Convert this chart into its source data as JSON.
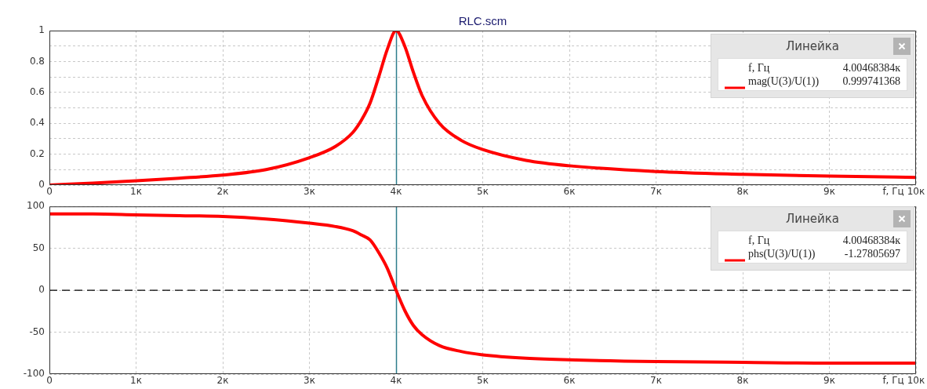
{
  "chart_data": [
    {
      "type": "line",
      "title": "RLC.scm",
      "xlabel": "f, Гц",
      "legend": "top right",
      "legend_title": "Линейка",
      "marker": "none",
      "line_style": "solid",
      "grid": true,
      "xlim": [
        0,
        10
      ],
      "xticks": [
        0,
        {
          "value": 1,
          "label": "1к"
        },
        {
          "value": 2,
          "label": "2к"
        },
        {
          "value": 3,
          "label": "3к"
        },
        {
          "value": 4,
          "label": "4к"
        },
        {
          "value": 5,
          "label": "5к"
        },
        {
          "value": 6,
          "label": "6к"
        },
        {
          "value": 7,
          "label": "7к"
        },
        {
          "value": 8,
          "label": "8к"
        },
        {
          "value": 9,
          "label": "9к"
        },
        {
          "value": 10,
          "label": "10к"
        }
      ],
      "ylim": [
        0,
        1
      ],
      "yticks": [
        0,
        {
          "value": 0.1,
          "label": null
        },
        0.2,
        {
          "value": 0.3,
          "label": null
        },
        0.4,
        {
          "value": 0.5,
          "label": null
        },
        0.6,
        {
          "value": 0.7,
          "label": null
        },
        0.8,
        {
          "value": 0.9,
          "label": null
        },
        1
      ],
      "x": [
        0,
        0.5,
        1,
        1.5,
        2,
        2.5,
        3,
        3.3,
        3.5,
        3.6,
        3.7,
        3.8,
        3.9,
        4,
        4.1,
        4.2,
        4.3,
        4.5,
        4.75,
        5,
        5.5,
        6,
        7,
        8,
        9,
        10
      ],
      "series": [
        {
          "name": "mag(U(3)/U(1))",
          "color": "#ff0000",
          "values": [
            0,
            0.013,
            0.028,
            0.045,
            0.065,
            0.1,
            0.177,
            0.25,
            0.34,
            0.42,
            0.53,
            0.7,
            0.88,
            1,
            0.9,
            0.73,
            0.58,
            0.4,
            0.29,
            0.23,
            0.16,
            0.125,
            0.088,
            0.07,
            0.058,
            0.05
          ]
        }
      ],
      "ref_lines": [
        {
          "axis": "x",
          "value": 4.00468384,
          "color": "#2e7d8c"
        }
      ],
      "annotations": [
        "4.00468384к",
        "0.999741368"
      ]
    },
    {
      "type": "line",
      "xlabel": "f, Гц",
      "legend": "top right",
      "legend_title": "Линейка",
      "marker": "none",
      "line_style": "solid",
      "grid": true,
      "xlim": [
        0,
        10
      ],
      "xticks": [
        0,
        {
          "value": 1,
          "label": "1к"
        },
        {
          "value": 2,
          "label": "2к"
        },
        {
          "value": 3,
          "label": "3к"
        },
        {
          "value": 4,
          "label": "4к"
        },
        {
          "value": 5,
          "label": "5к"
        },
        {
          "value": 6,
          "label": "6к"
        },
        {
          "value": 7,
          "label": "7к"
        },
        {
          "value": 8,
          "label": "8к"
        },
        {
          "value": 9,
          "label": "9к"
        },
        {
          "value": 10,
          "label": "10к"
        }
      ],
      "ylim": [
        -100,
        100
      ],
      "yticks": [
        -100,
        -50,
        0,
        50,
        100
      ],
      "x": [
        0,
        0.5,
        1,
        1.5,
        2,
        2.5,
        3,
        3.3,
        3.5,
        3.6,
        3.7,
        3.8,
        3.9,
        4,
        4.1,
        4.2,
        4.3,
        4.5,
        4.75,
        5,
        5.5,
        6,
        7,
        8,
        9,
        10
      ],
      "series": [
        {
          "name": "phs(U(3)/U(1))",
          "color": "#ff0000",
          "values": [
            91,
            91,
            90,
            89,
            88,
            85,
            80,
            76,
            71,
            66,
            60,
            45,
            26,
            0,
            -24,
            -42,
            -53,
            -66,
            -73,
            -77,
            -81,
            -83,
            -85,
            -86,
            -87,
            -87
          ]
        }
      ],
      "ref_lines": [
        {
          "axis": "x",
          "value": 4.00468384,
          "color": "#2e7d8c"
        },
        {
          "axis": "y",
          "value": 0,
          "color": "#000000",
          "line_style": "dashed"
        }
      ],
      "annotations": [
        "4.00468384к",
        "-1.27805697"
      ]
    }
  ]
}
